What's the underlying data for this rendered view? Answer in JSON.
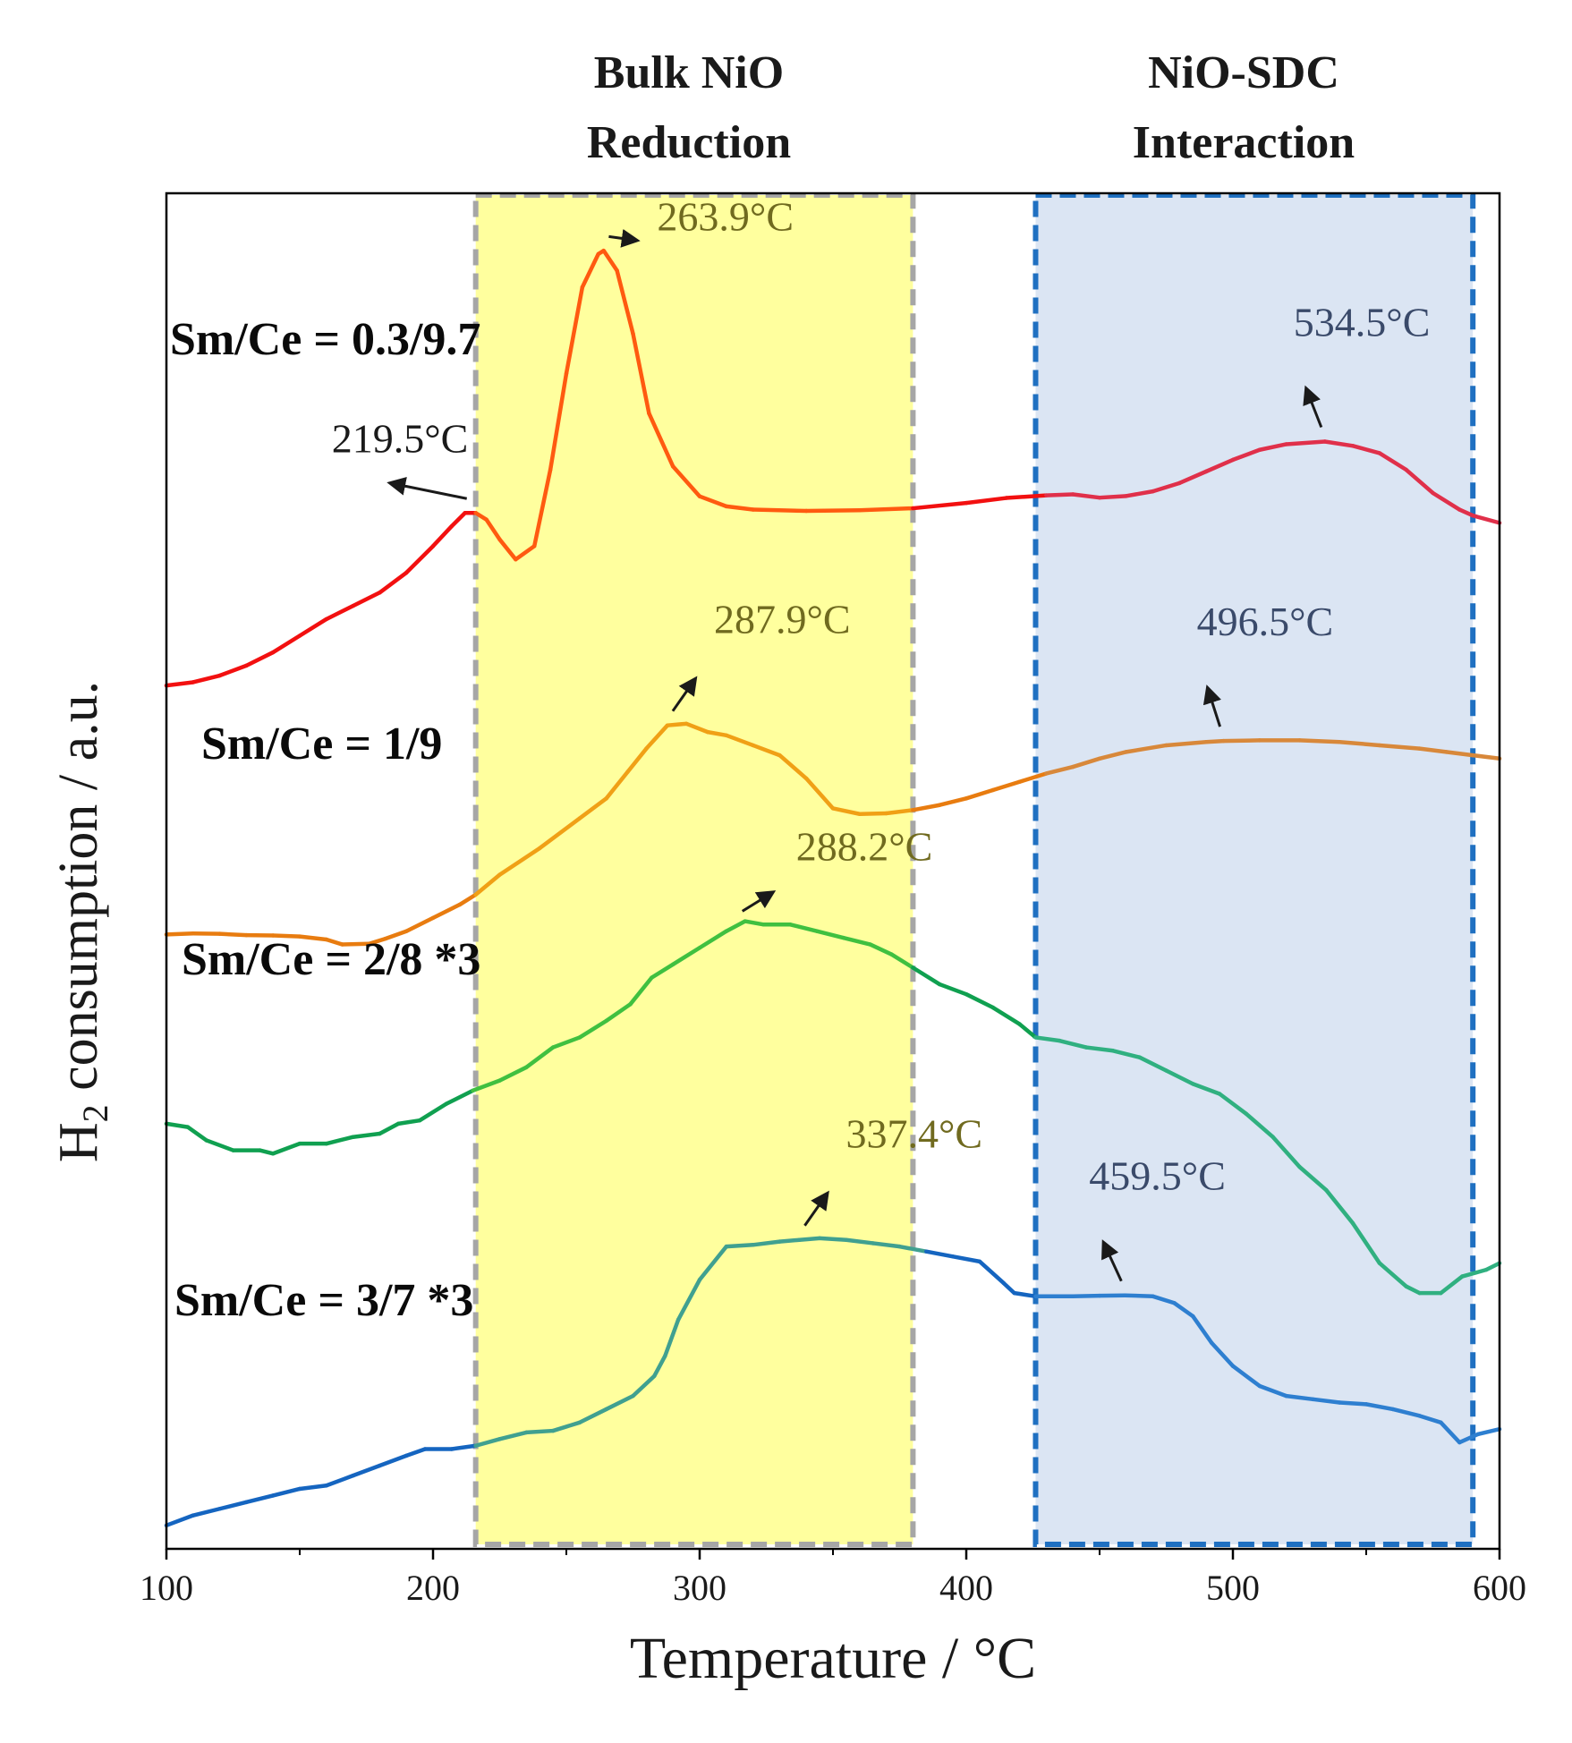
{
  "chart_data": {
    "type": "line",
    "xlabel": "Temperature / °C",
    "ylabel_main": "H",
    "ylabel_sub": "2",
    "ylabel_rest": " consumption / a.u.",
    "xlim": [
      100,
      600
    ],
    "xticks": [
      "100",
      "200",
      "300",
      "400",
      "500",
      "600"
    ],
    "regions": [
      {
        "name": "bulk-nio",
        "title_line1": "Bulk NiO",
        "title_line2": "Reduction",
        "x_start": 216,
        "x_end": 380,
        "fill": "#ffff9e",
        "border": "#a6a6a6"
      },
      {
        "name": "nio-sdc",
        "title_line1": "NiO-SDC",
        "title_line2": "Interaction",
        "x_start": 426,
        "x_end": 590,
        "fill": "#dbe5f3",
        "border": "#1f70c1"
      }
    ],
    "series": [
      {
        "name": "Sm/Ce = 0.3/9.7",
        "label": "Sm/Ce = 0.3/9.7",
        "color_start": "#f21010",
        "color_mid": "#ff5a10",
        "color_end": "#e0304a",
        "points": [
          [
            100,
            3.23
          ],
          [
            110,
            3.24
          ],
          [
            120,
            3.26
          ],
          [
            130,
            3.29
          ],
          [
            140,
            3.33
          ],
          [
            150,
            3.38
          ],
          [
            160,
            3.43
          ],
          [
            170,
            3.47
          ],
          [
            180,
            3.51
          ],
          [
            190,
            3.57
          ],
          [
            200,
            3.65
          ],
          [
            207,
            3.71
          ],
          [
            212,
            3.75
          ],
          [
            216,
            3.75
          ],
          [
            220,
            3.73
          ],
          [
            225,
            3.67
          ],
          [
            231,
            3.61
          ],
          [
            238,
            3.65
          ],
          [
            244,
            3.88
          ],
          [
            250,
            4.17
          ],
          [
            256,
            4.43
          ],
          [
            262,
            4.53
          ],
          [
            264,
            4.54
          ],
          [
            269,
            4.48
          ],
          [
            275,
            4.29
          ],
          [
            281,
            4.05
          ],
          [
            290,
            3.89
          ],
          [
            300,
            3.8
          ],
          [
            310,
            3.77
          ],
          [
            320,
            3.76
          ],
          [
            340,
            3.756
          ],
          [
            360,
            3.758
          ],
          [
            380,
            3.764
          ],
          [
            400,
            3.78
          ],
          [
            415,
            3.795
          ],
          [
            430,
            3.803
          ],
          [
            440,
            3.806
          ],
          [
            450,
            3.796
          ],
          [
            460,
            3.801
          ],
          [
            470,
            3.815
          ],
          [
            480,
            3.84
          ],
          [
            490,
            3.875
          ],
          [
            500,
            3.91
          ],
          [
            510,
            3.94
          ],
          [
            520,
            3.957
          ],
          [
            534.5,
            3.965
          ],
          [
            545,
            3.952
          ],
          [
            555,
            3.93
          ],
          [
            565,
            3.88
          ],
          [
            575,
            3.81
          ],
          [
            585,
            3.76
          ],
          [
            590,
            3.742
          ],
          [
            600,
            3.72
          ]
        ]
      },
      {
        "name": "Sm/Ce = 1/9",
        "label": "Sm/Ce = 1/9",
        "color_start": "#e87c10",
        "color_mid": "#f0a016",
        "color_end": "#d8883a",
        "points": [
          [
            100,
            2.48
          ],
          [
            110,
            2.483
          ],
          [
            120,
            2.482
          ],
          [
            130,
            2.478
          ],
          [
            140,
            2.477
          ],
          [
            150,
            2.474
          ],
          [
            160,
            2.465
          ],
          [
            166,
            2.45
          ],
          [
            176,
            2.452
          ],
          [
            182,
            2.467
          ],
          [
            190,
            2.49
          ],
          [
            200,
            2.53
          ],
          [
            210,
            2.57
          ],
          [
            216,
            2.6
          ],
          [
            225,
            2.66
          ],
          [
            240,
            2.74
          ],
          [
            255,
            2.83
          ],
          [
            265,
            2.89
          ],
          [
            273,
            2.97
          ],
          [
            280,
            3.04
          ],
          [
            287.9,
            3.11
          ],
          [
            295,
            3.115
          ],
          [
            303,
            3.09
          ],
          [
            310,
            3.08
          ],
          [
            320,
            3.05
          ],
          [
            330,
            3.02
          ],
          [
            340,
            2.95
          ],
          [
            350,
            2.86
          ],
          [
            360,
            2.843
          ],
          [
            370,
            2.845
          ],
          [
            380,
            2.855
          ],
          [
            390,
            2.87
          ],
          [
            400,
            2.89
          ],
          [
            410,
            2.915
          ],
          [
            420,
            2.94
          ],
          [
            430,
            2.965
          ],
          [
            440,
            2.985
          ],
          [
            450,
            3.01
          ],
          [
            460,
            3.03
          ],
          [
            475,
            3.05
          ],
          [
            490,
            3.06
          ],
          [
            496.5,
            3.063
          ],
          [
            510,
            3.065
          ],
          [
            525,
            3.065
          ],
          [
            540,
            3.06
          ],
          [
            555,
            3.05
          ],
          [
            570,
            3.04
          ],
          [
            580,
            3.03
          ],
          [
            590,
            3.02
          ],
          [
            600,
            3.01
          ]
        ]
      },
      {
        "name": "Sm/Ce = 2/8 *3",
        "label": "Sm/Ce = 2/8 *3",
        "color_start": "#10a050",
        "color_mid": "#40c040",
        "color_end": "#30b080",
        "points": [
          [
            100,
            1.91
          ],
          [
            108,
            1.9
          ],
          [
            115,
            1.86
          ],
          [
            125,
            1.83
          ],
          [
            135,
            1.83
          ],
          [
            140,
            1.82
          ],
          [
            150,
            1.85
          ],
          [
            160,
            1.85
          ],
          [
            170,
            1.87
          ],
          [
            180,
            1.88
          ],
          [
            187,
            1.91
          ],
          [
            195,
            1.92
          ],
          [
            205,
            1.97
          ],
          [
            215,
            2.01
          ],
          [
            225,
            2.04
          ],
          [
            235,
            2.08
          ],
          [
            245,
            2.14
          ],
          [
            255,
            2.17
          ],
          [
            265,
            2.22
          ],
          [
            274,
            2.27
          ],
          [
            282,
            2.35
          ],
          [
            290,
            2.39
          ],
          [
            300,
            2.44
          ],
          [
            310,
            2.49
          ],
          [
            317,
            2.52
          ],
          [
            324,
            2.51
          ],
          [
            334,
            2.51
          ],
          [
            344,
            2.49
          ],
          [
            354,
            2.47
          ],
          [
            364,
            2.45
          ],
          [
            372,
            2.42
          ],
          [
            380,
            2.38
          ],
          [
            390,
            2.33
          ],
          [
            400,
            2.3
          ],
          [
            410,
            2.26
          ],
          [
            420,
            2.21
          ],
          [
            426,
            2.17
          ],
          [
            435,
            2.16
          ],
          [
            445,
            2.14
          ],
          [
            455,
            2.13
          ],
          [
            465,
            2.11
          ],
          [
            475,
            2.07
          ],
          [
            485,
            2.03
          ],
          [
            495,
            2.0
          ],
          [
            505,
            1.94
          ],
          [
            515,
            1.87
          ],
          [
            525,
            1.78
          ],
          [
            535,
            1.71
          ],
          [
            545,
            1.61
          ],
          [
            555,
            1.49
          ],
          [
            565,
            1.42
          ],
          [
            570,
            1.4
          ],
          [
            578,
            1.4
          ],
          [
            586,
            1.45
          ],
          [
            595,
            1.47
          ],
          [
            600,
            1.49
          ]
        ]
      },
      {
        "name": "Sm/Ce = 3/7 *3",
        "label": "Sm/Ce = 3/7 *3",
        "color_start": "#1565c0",
        "color_mid": "#40a090",
        "color_end": "#2e7fd0",
        "points": [
          [
            100,
            0.7
          ],
          [
            110,
            0.73
          ],
          [
            120,
            0.75
          ],
          [
            130,
            0.77
          ],
          [
            140,
            0.79
          ],
          [
            150,
            0.81
          ],
          [
            160,
            0.82
          ],
          [
            170,
            0.85
          ],
          [
            180,
            0.88
          ],
          [
            190,
            0.91
          ],
          [
            197,
            0.93
          ],
          [
            207,
            0.93
          ],
          [
            216,
            0.94
          ],
          [
            225,
            0.96
          ],
          [
            235,
            0.98
          ],
          [
            245,
            0.985
          ],
          [
            255,
            1.01
          ],
          [
            265,
            1.05
          ],
          [
            275,
            1.09
          ],
          [
            283,
            1.15
          ],
          [
            287,
            1.21
          ],
          [
            292,
            1.32
          ],
          [
            300,
            1.44
          ],
          [
            310,
            1.54
          ],
          [
            320,
            1.545
          ],
          [
            330,
            1.555
          ],
          [
            337.4,
            1.56
          ],
          [
            345,
            1.565
          ],
          [
            355,
            1.56
          ],
          [
            365,
            1.55
          ],
          [
            375,
            1.54
          ],
          [
            385,
            1.525
          ],
          [
            395,
            1.51
          ],
          [
            405,
            1.495
          ],
          [
            414,
            1.43
          ],
          [
            418,
            1.4
          ],
          [
            426,
            1.39
          ],
          [
            440,
            1.39
          ],
          [
            450,
            1.392
          ],
          [
            459.5,
            1.393
          ],
          [
            470,
            1.39
          ],
          [
            478,
            1.37
          ],
          [
            485,
            1.33
          ],
          [
            492,
            1.25
          ],
          [
            500,
            1.18
          ],
          [
            510,
            1.12
          ],
          [
            520,
            1.09
          ],
          [
            530,
            1.08
          ],
          [
            540,
            1.07
          ],
          [
            550,
            1.065
          ],
          [
            560,
            1.05
          ],
          [
            570,
            1.03
          ],
          [
            578,
            1.01
          ],
          [
            585,
            0.95
          ],
          [
            592,
            0.975
          ],
          [
            600,
            0.99
          ]
        ]
      }
    ],
    "annotations": [
      {
        "text": "263.9°C",
        "x": 263.9,
        "series": 0,
        "color": "#706a1f",
        "dx": 60,
        "dy": -5
      },
      {
        "text": "219.5°C",
        "x": 214,
        "series": 0,
        "color": "#1a1a1a",
        "dx": -155,
        "dy": -50
      },
      {
        "text": "534.5°C",
        "x": 534.5,
        "series": 0,
        "color": "#3a4a6a",
        "dx": -35,
        "dy": -100
      },
      {
        "text": "287.9°C",
        "x": 287.9,
        "series": 1,
        "color": "#706a1f",
        "dx": 52,
        "dy": -85
      },
      {
        "text": "496.5°C",
        "x": 496.5,
        "series": 1,
        "color": "#3a4a6a",
        "dx": -30,
        "dy": -100
      },
      {
        "text": "288.2°C",
        "x": 314,
        "series": 2,
        "color": "#706a1f",
        "dx": 66,
        "dy": -55
      },
      {
        "text": "337.4°C",
        "x": 337.4,
        "series": 3,
        "color": "#706a1f",
        "dx": 52,
        "dy": -85
      },
      {
        "text": "459.5°C",
        "x": 459.5,
        "series": 3,
        "color": "#3a4a6a",
        "dx": -40,
        "dy": -100
      }
    ]
  }
}
